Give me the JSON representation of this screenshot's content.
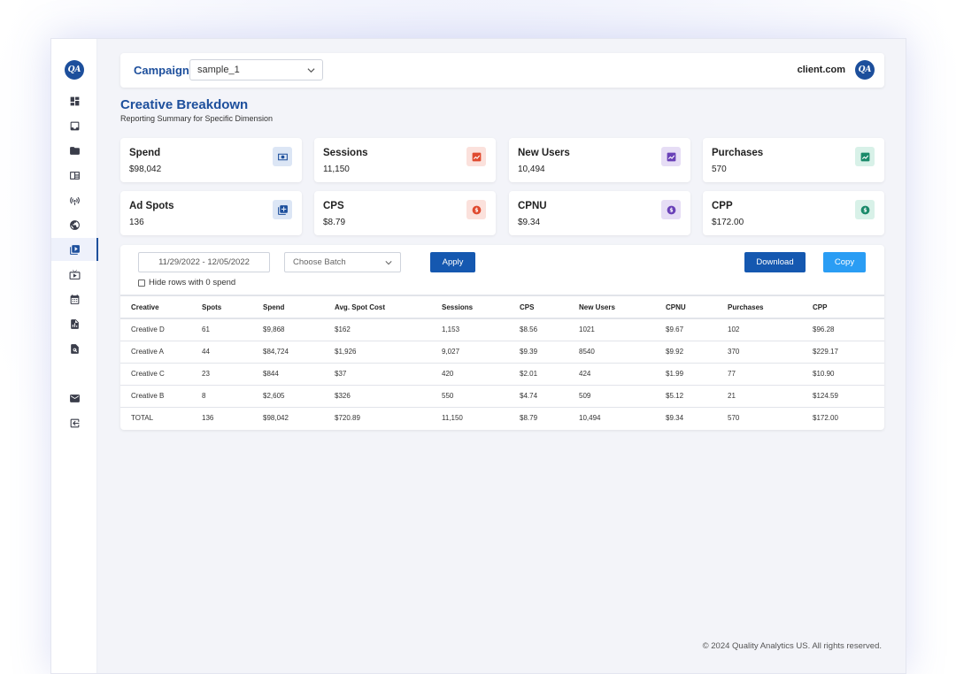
{
  "brand": {
    "logo_text": "QA",
    "client_name": "client.com"
  },
  "campaign": {
    "label": "Campaign:",
    "selected": "sample_1"
  },
  "page": {
    "title": "Creative Breakdown",
    "subtitle": "Reporting Summary for Specific Dimension"
  },
  "cards": [
    {
      "label": "Spend",
      "value": "$98,042",
      "icon": "money-icon",
      "color": "#1d4f9c",
      "bg": "#dce6f5"
    },
    {
      "label": "Sessions",
      "value": "11,150",
      "icon": "trend-up-icon",
      "color": "#e04a2f",
      "bg": "#fbe1dc"
    },
    {
      "label": "New Users",
      "value": "10,494",
      "icon": "trend-up-icon",
      "color": "#6a41b8",
      "bg": "#e6ddf5"
    },
    {
      "label": "Purchases",
      "value": "570",
      "icon": "trend-up-icon",
      "color": "#1a8a6a",
      "bg": "#d8f1e8"
    },
    {
      "label": "Ad Spots",
      "value": "136",
      "icon": "add-library-icon",
      "color": "#1d4f9c",
      "bg": "#dce6f5"
    },
    {
      "label": "CPS",
      "value": "$8.79",
      "icon": "dollar-coin-icon",
      "color": "#e04a2f",
      "bg": "#fbe1dc"
    },
    {
      "label": "CPNU",
      "value": "$9.34",
      "icon": "dollar-coin-icon",
      "color": "#6a41b8",
      "bg": "#e6ddf5"
    },
    {
      "label": "CPP",
      "value": "$172.00",
      "icon": "dollar-coin-icon",
      "color": "#1a8a6a",
      "bg": "#d8f1e8"
    }
  ],
  "filters": {
    "date_range": "11/29/2022 - 12/05/2022",
    "batch_placeholder": "Choose Batch",
    "apply_label": "Apply",
    "download_label": "Download",
    "copy_label": "Copy",
    "hide_rows_label": "Hide rows with 0 spend"
  },
  "table": {
    "headers": [
      "Creative",
      "Spots",
      "Spend",
      "Avg. Spot Cost",
      "Sessions",
      "CPS",
      "New Users",
      "CPNU",
      "Purchases",
      "CPP"
    ],
    "rows": [
      [
        "Creative D",
        "61",
        "$9,868",
        "$162",
        "1,153",
        "$8.56",
        "1021",
        "$9.67",
        "102",
        "$96.28"
      ],
      [
        "Creative A",
        "44",
        "$84,724",
        "$1,926",
        "9,027",
        "$9.39",
        "8540",
        "$9.92",
        "370",
        "$229.17"
      ],
      [
        "Creative C",
        "23",
        "$844",
        "$37",
        "420",
        "$2.01",
        "424",
        "$1.99",
        "77",
        "$10.90"
      ],
      [
        "Creative B",
        "8",
        "$2,605",
        "$326",
        "550",
        "$4.74",
        "509",
        "$5.12",
        "21",
        "$124.59"
      ]
    ],
    "total": [
      "TOTAL",
      "136",
      "$98,042",
      "$720.89",
      "11,150",
      "$8.79",
      "10,494",
      "$9.34",
      "570",
      "$172.00"
    ]
  },
  "footer": {
    "text": "© 2024 Quality Analytics US. All rights reserved."
  },
  "sidebar": {
    "items": [
      "dashboard-icon",
      "inbox-icon",
      "folder-icon",
      "layout-icon",
      "broadcast-icon",
      "globe-icon",
      "video-library-icon",
      "tv-icon",
      "calendar-icon",
      "report-icon",
      "search-document-icon",
      "mail-icon",
      "logout-icon"
    ],
    "active": "video-library-icon"
  }
}
